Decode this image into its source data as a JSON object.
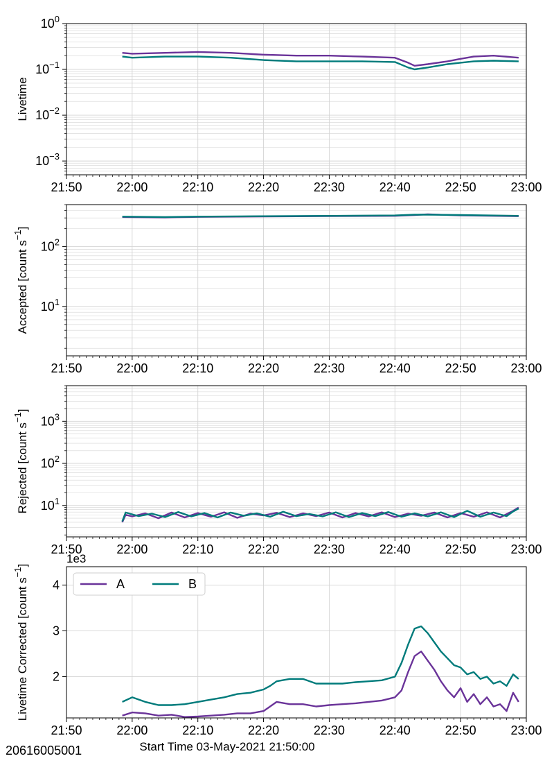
{
  "figure_id": "20616005001",
  "colors": {
    "A": "#6a3399",
    "B": "#007b7b",
    "grid": "#d4d4d4"
  },
  "legend_location": "upper-left",
  "chart_data": [
    {
      "type": "line",
      "ylabel": "Livetime",
      "yscale": "log",
      "ylim": [
        0.0005,
        1
      ],
      "yticks": [
        {
          "value": 0.001,
          "base": "10",
          "exp": "−3"
        },
        {
          "value": 0.01,
          "base": "10",
          "exp": "−2"
        },
        {
          "value": 0.1,
          "base": "10",
          "exp": "−1"
        },
        {
          "value": 1,
          "base": "10",
          "exp": "0"
        }
      ],
      "xlim": [
        "21:50",
        "23:00"
      ],
      "xticks": [
        "21:50",
        "22:00",
        "22:10",
        "22:20",
        "22:30",
        "22:40",
        "22:50",
        "23:00"
      ],
      "grid": true,
      "series": [
        {
          "name": "A",
          "x": [
            "21:58:30",
            "22:00",
            "22:05",
            "22:10",
            "22:15",
            "22:20",
            "22:25",
            "22:30",
            "22:35",
            "22:40",
            "22:42",
            "22:43",
            "22:45",
            "22:48",
            "22:50",
            "22:52",
            "22:55",
            "22:58:50"
          ],
          "y": [
            0.23,
            0.22,
            0.23,
            0.24,
            0.23,
            0.21,
            0.2,
            0.2,
            0.19,
            0.18,
            0.14,
            0.12,
            0.13,
            0.15,
            0.17,
            0.19,
            0.2,
            0.18
          ]
        },
        {
          "name": "B",
          "x": [
            "21:58:30",
            "22:00",
            "22:05",
            "22:10",
            "22:15",
            "22:20",
            "22:25",
            "22:30",
            "22:35",
            "22:40",
            "22:42",
            "22:43",
            "22:45",
            "22:48",
            "22:50",
            "22:52",
            "22:55",
            "22:58:50"
          ],
          "y": [
            0.19,
            0.18,
            0.19,
            0.19,
            0.18,
            0.16,
            0.15,
            0.15,
            0.15,
            0.145,
            0.11,
            0.1,
            0.11,
            0.13,
            0.14,
            0.15,
            0.155,
            0.15
          ]
        }
      ]
    },
    {
      "type": "line",
      "ylabel": "Accepted [count s",
      "ylabel_exp": "−1",
      "ylabel_tail": "]",
      "yscale": "log",
      "ylim": [
        1.5,
        500
      ],
      "yticks": [
        {
          "value": 10,
          "base": "10",
          "exp": "1"
        },
        {
          "value": 100,
          "base": "10",
          "exp": "2"
        }
      ],
      "xlim": [
        "21:50",
        "23:00"
      ],
      "xticks": [
        "21:50",
        "22:00",
        "22:10",
        "22:20",
        "22:30",
        "22:40",
        "22:50",
        "23:00"
      ],
      "grid": true,
      "series": [
        {
          "name": "A",
          "x": [
            "21:58:30",
            "22:05",
            "22:10",
            "22:20",
            "22:30",
            "22:40",
            "22:43",
            "22:45",
            "22:50",
            "22:58:50"
          ],
          "y": [
            310,
            305,
            312,
            318,
            322,
            325,
            335,
            345,
            330,
            320
          ]
        },
        {
          "name": "B",
          "x": [
            "21:58:30",
            "22:05",
            "22:10",
            "22:20",
            "22:30",
            "22:40",
            "22:43",
            "22:45",
            "22:50",
            "22:58:50"
          ],
          "y": [
            315,
            310,
            315,
            320,
            325,
            330,
            340,
            340,
            335,
            325
          ]
        }
      ]
    },
    {
      "type": "line",
      "ylabel": "Rejected [count s",
      "ylabel_exp": "−1",
      "ylabel_tail": "]",
      "yscale": "log",
      "ylim": [
        1.8,
        7000
      ],
      "yticks": [
        {
          "value": 10,
          "base": "10",
          "exp": "1"
        },
        {
          "value": 100,
          "base": "10",
          "exp": "2"
        },
        {
          "value": 1000,
          "base": "10",
          "exp": "3"
        }
      ],
      "xlim": [
        "21:50",
        "23:00"
      ],
      "xticks": [
        "21:50",
        "22:00",
        "22:10",
        "22:20",
        "22:30",
        "22:40",
        "22:50",
        "23:00"
      ],
      "grid": true,
      "series": [
        {
          "name": "A",
          "x": [
            "21:58:30",
            "21:59",
            "22:00",
            "22:02",
            "22:04",
            "22:06",
            "22:08",
            "22:10",
            "22:12",
            "22:14",
            "22:16",
            "22:18",
            "22:20",
            "22:22",
            "22:24",
            "22:26",
            "22:28",
            "22:30",
            "22:32",
            "22:34",
            "22:36",
            "22:38",
            "22:40",
            "22:42",
            "22:44",
            "22:46",
            "22:48",
            "22:50",
            "22:52",
            "22:54",
            "22:56",
            "22:58",
            "22:58:50"
          ],
          "y": [
            4,
            6,
            5.5,
            6.5,
            5,
            6.8,
            5.2,
            6.6,
            5.4,
            6.9,
            5.1,
            6.4,
            5.8,
            6.7,
            5.3,
            6.5,
            5.6,
            6.8,
            5.2,
            6.6,
            5.5,
            6.9,
            5.3,
            6.4,
            5.7,
            6.8,
            5.2,
            6.6,
            5.4,
            6.9,
            5.2,
            7.5,
            9
          ]
        },
        {
          "name": "B",
          "x": [
            "21:58:30",
            "21:59",
            "22:01",
            "22:03",
            "22:05",
            "22:07",
            "22:09",
            "22:11",
            "22:13",
            "22:15",
            "22:17",
            "22:19",
            "22:21",
            "22:23",
            "22:25",
            "22:27",
            "22:29",
            "22:31",
            "22:33",
            "22:35",
            "22:37",
            "22:39",
            "22:41",
            "22:43",
            "22:45",
            "22:47",
            "22:49",
            "22:51",
            "22:53",
            "22:55",
            "22:57",
            "22:58",
            "22:58:50"
          ],
          "y": [
            4.2,
            6.8,
            5.6,
            6.4,
            5.3,
            7,
            5.5,
            6.6,
            5.2,
            6.8,
            5.7,
            6.5,
            5.4,
            7.1,
            5.6,
            6.3,
            5.5,
            6.9,
            5.3,
            6.6,
            5.6,
            7,
            5.4,
            6.5,
            5.5,
            6.9,
            5.3,
            7.5,
            5.4,
            6.8,
            5.6,
            7.2,
            8.5
          ]
        }
      ]
    },
    {
      "type": "line",
      "ylabel": "Livetime Corrected [count s",
      "ylabel_exp": "−1",
      "ylabel_tail": "]",
      "offset_text": "1e3",
      "yscale": "linear",
      "ylim": [
        1.1,
        4.4
      ],
      "yticks": [
        {
          "value": 2,
          "label": "2"
        },
        {
          "value": 3,
          "label": "3"
        },
        {
          "value": 4,
          "label": "4"
        }
      ],
      "xlim": [
        "21:50",
        "23:00"
      ],
      "xticks": [
        "21:50",
        "22:00",
        "22:10",
        "22:20",
        "22:30",
        "22:40",
        "22:50",
        "23:00"
      ],
      "xlabel": "Start Time 03-May-2021 21:50:00",
      "grid": true,
      "legend": [
        "A",
        "B"
      ],
      "series": [
        {
          "name": "A",
          "x": [
            "21:58:30",
            "22:00",
            "22:02",
            "22:04",
            "22:06",
            "22:08",
            "22:10",
            "22:12",
            "22:14",
            "22:16",
            "22:18",
            "22:20",
            "22:21",
            "22:22",
            "22:24",
            "22:26",
            "22:28",
            "22:30",
            "22:32",
            "22:34",
            "22:36",
            "22:38",
            "22:40",
            "22:41",
            "22:42",
            "22:43",
            "22:44",
            "22:45",
            "22:46",
            "22:47",
            "22:48",
            "22:49",
            "22:50",
            "22:51",
            "22:52",
            "22:53",
            "22:54",
            "22:55",
            "22:56",
            "22:57",
            "22:58",
            "22:58:50"
          ],
          "y": [
            1.15,
            1.22,
            1.2,
            1.15,
            1.17,
            1.12,
            1.13,
            1.15,
            1.17,
            1.2,
            1.2,
            1.25,
            1.35,
            1.45,
            1.4,
            1.4,
            1.35,
            1.38,
            1.4,
            1.42,
            1.45,
            1.48,
            1.55,
            1.7,
            2.1,
            2.45,
            2.55,
            2.35,
            2.15,
            1.9,
            1.7,
            1.55,
            1.75,
            1.45,
            1.62,
            1.4,
            1.55,
            1.35,
            1.4,
            1.25,
            1.65,
            1.45
          ]
        },
        {
          "name": "B",
          "x": [
            "21:58:30",
            "22:00",
            "22:02",
            "22:04",
            "22:06",
            "22:08",
            "22:10",
            "22:12",
            "22:14",
            "22:16",
            "22:18",
            "22:20",
            "22:21",
            "22:22",
            "22:24",
            "22:26",
            "22:28",
            "22:30",
            "22:32",
            "22:34",
            "22:36",
            "22:38",
            "22:40",
            "22:41",
            "22:42",
            "22:43",
            "22:44",
            "22:45",
            "22:46",
            "22:47",
            "22:48",
            "22:49",
            "22:50",
            "22:51",
            "22:52",
            "22:53",
            "22:54",
            "22:55",
            "22:56",
            "22:57",
            "22:58",
            "22:58:50"
          ],
          "y": [
            1.45,
            1.55,
            1.45,
            1.38,
            1.38,
            1.4,
            1.45,
            1.5,
            1.55,
            1.62,
            1.65,
            1.72,
            1.8,
            1.9,
            1.95,
            1.95,
            1.85,
            1.85,
            1.85,
            1.88,
            1.9,
            1.92,
            2.0,
            2.3,
            2.7,
            3.05,
            3.1,
            2.95,
            2.75,
            2.55,
            2.4,
            2.25,
            2.2,
            2.05,
            2.1,
            1.95,
            2.0,
            1.85,
            1.9,
            1.8,
            2.05,
            1.95
          ]
        }
      ]
    }
  ]
}
